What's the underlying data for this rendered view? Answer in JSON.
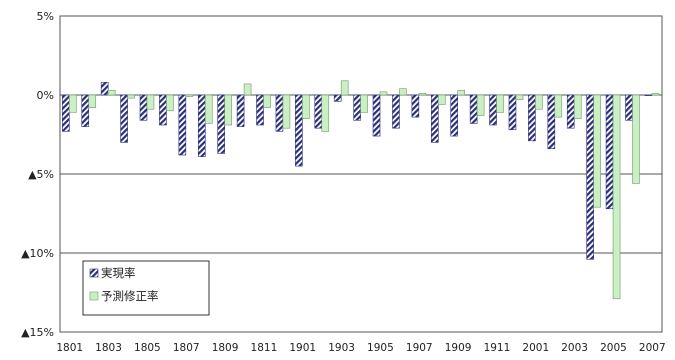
{
  "chart_data": {
    "type": "bar",
    "title": "",
    "xlabel": "",
    "ylabel": "",
    "ylim": [
      -15,
      5
    ],
    "y_ticks": [
      {
        "value": 5,
        "label": "5%"
      },
      {
        "value": 0,
        "label": "0%"
      },
      {
        "value": -5,
        "label": "▲5%"
      },
      {
        "value": -10,
        "label": "▲10%"
      },
      {
        "value": -15,
        "label": "▲15%"
      }
    ],
    "grid": true,
    "legend_position": "bottom-left",
    "categories": [
      "1801",
      "1802",
      "1803",
      "1804",
      "1805",
      "1806",
      "1807",
      "1808",
      "1809",
      "1810",
      "1811",
      "1812",
      "1901",
      "1902",
      "1903",
      "1904",
      "1905",
      "1906",
      "1907",
      "1908",
      "1909",
      "1910",
      "1911",
      "1912",
      "2001",
      "2002",
      "2003",
      "2004",
      "2005",
      "2006",
      "2007"
    ],
    "tick_labels_shown": [
      "1801",
      "1803",
      "1805",
      "1807",
      "1809",
      "1811",
      "1901",
      "1903",
      "1905",
      "1907",
      "1909",
      "1911",
      "2001",
      "2003",
      "2005",
      "2007"
    ],
    "series": [
      {
        "name": "実現率",
        "pattern": "hatch",
        "color": "#2b2f7a",
        "values": [
          -2.3,
          -2.0,
          0.8,
          -3.0,
          -1.6,
          -1.9,
          -3.8,
          -3.9,
          -3.7,
          -2.0,
          -1.9,
          -2.3,
          -4.5,
          -2.1,
          -0.4,
          -1.6,
          -2.6,
          -2.1,
          -1.4,
          -3.0,
          -2.6,
          -1.8,
          -1.9,
          -2.2,
          -2.9,
          -3.4,
          -2.1,
          -10.4,
          -7.2,
          -1.6,
          0.0
        ]
      },
      {
        "name": "予測修正率",
        "pattern": "solid",
        "color": "#c9efc3",
        "values": [
          -1.1,
          -0.8,
          0.3,
          -0.2,
          -0.9,
          -1.0,
          -0.1,
          -1.8,
          -1.9,
          0.7,
          -0.8,
          -2.1,
          -1.5,
          -2.3,
          0.9,
          -1.1,
          0.2,
          0.4,
          0.1,
          -0.6,
          0.3,
          -1.3,
          -1.1,
          -0.3,
          -0.9,
          -1.4,
          -1.5,
          -7.1,
          -12.9,
          -5.6,
          0.1
        ]
      }
    ]
  }
}
